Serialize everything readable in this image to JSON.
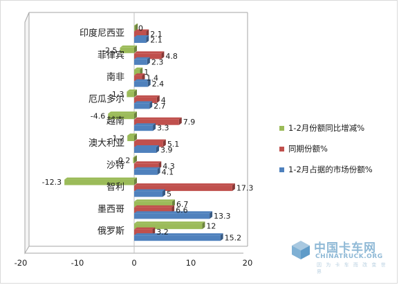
{
  "chart_data": {
    "type": "bar",
    "orientation": "horizontal",
    "categories": [
      "印度尼西亚",
      "菲律宾",
      "南非",
      "厄瓜多尔",
      "越南",
      "澳大利亚",
      "沙特",
      "智利",
      "墨西哥",
      "俄罗斯"
    ],
    "series": [
      {
        "name": "1-2月份额同比增减%",
        "color": "#9bbb59",
        "values": [
          0,
          -2.5,
          1,
          -1.3,
          -4.6,
          -1.2,
          -0.2,
          -12.3,
          6.7,
          12
        ]
      },
      {
        "name": "同期份额%",
        "color": "#c0504d",
        "values": [
          2.1,
          4.8,
          1.4,
          4,
          7.9,
          5.1,
          4.3,
          17.3,
          6.6,
          3.2
        ]
      },
      {
        "name": "1-2月占据的市场份额%",
        "color": "#4f81bd",
        "values": [
          2.1,
          2.3,
          2.4,
          2.7,
          3.3,
          3.9,
          4.1,
          5,
          13.3,
          15.2
        ]
      }
    ],
    "x_ticks": [
      "-20",
      "-10",
      "0",
      "10",
      "20"
    ],
    "xlim": [
      -20,
      20
    ],
    "grid": false,
    "legend_position": "right"
  },
  "watermark": {
    "cn": "中国卡车网",
    "en": "CHINATRUCK.ORG",
    "sub": "因 为 卡 车 而 改 变 世 界"
  }
}
